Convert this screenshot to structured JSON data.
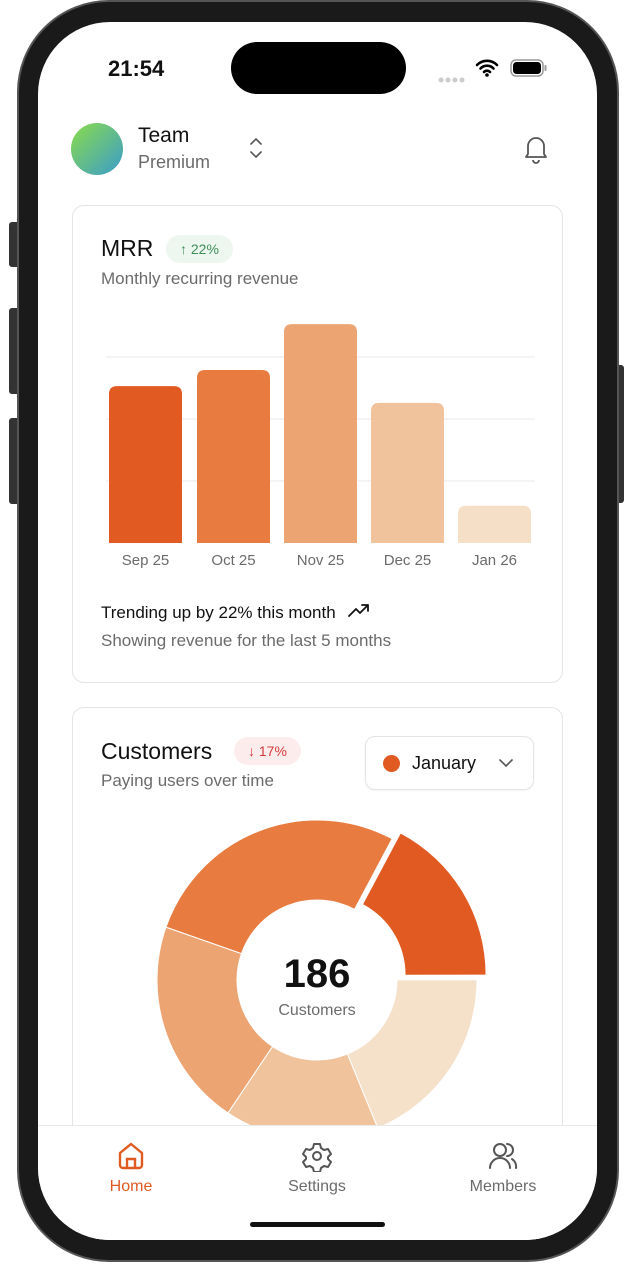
{
  "status_bar": {
    "time": "21:54"
  },
  "header": {
    "team_name": "Team",
    "plan": "Premium",
    "icons": [
      "avatar-gradient",
      "chevrons-up-down-icon",
      "bell-icon"
    ]
  },
  "mrr_card": {
    "title": "MRR",
    "badge": "22%",
    "badge_icon": "arrow-up-icon",
    "subtitle": "Monthly recurring revenue",
    "trend_text": "Trending up by 22% this month",
    "trend_icon": "trending-up-icon",
    "footer": "Showing revenue for the last 5 months"
  },
  "customers_card": {
    "title": "Customers",
    "badge": "17%",
    "badge_icon": "arrow-down-icon",
    "subtitle": "Paying users over time",
    "month_select": "January",
    "center_value": "186",
    "center_label": "Customers"
  },
  "chart_data": [
    {
      "type": "bar",
      "categories": [
        "Sep 25",
        "Oct 25",
        "Nov 25",
        "Dec 25",
        "Jan 26"
      ],
      "values": [
        253,
        279,
        353,
        226,
        60
      ],
      "colors": [
        "#e05a22",
        "#e87c40",
        "#eca472",
        "#f0c39c",
        "#f5dfc7"
      ],
      "grid": true,
      "ylim": [
        0,
        400
      ]
    },
    {
      "type": "pie",
      "donut": true,
      "values": [
        32,
        35,
        29,
        39,
        51
      ],
      "colors": [
        "#e05a22",
        "#f5e1c9",
        "#f0c39c",
        "#eca472",
        "#e87c40"
      ],
      "highlighted_index": 0
    }
  ],
  "tabbar": {
    "items": [
      {
        "label": "Home",
        "icon": "home-icon",
        "active": true
      },
      {
        "label": "Settings",
        "icon": "gear-icon",
        "active": false
      },
      {
        "label": "Members",
        "icon": "users-icon",
        "active": false
      }
    ]
  },
  "colors": {
    "accent": "#e05a22",
    "up": "#3f8f5a",
    "down": "#d63b3b"
  }
}
